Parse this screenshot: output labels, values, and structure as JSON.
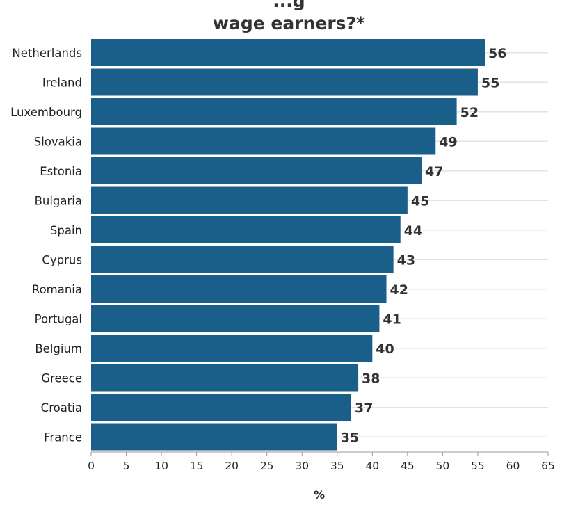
{
  "title_lines": [
    "...g",
    "wage earners?*"
  ],
  "chart_data": {
    "type": "bar",
    "orientation": "horizontal",
    "title": "...g wage earners?*",
    "xlabel": "%",
    "ylabel": "",
    "xlim": [
      0,
      65
    ],
    "xticks": [
      0,
      5,
      10,
      15,
      20,
      25,
      30,
      35,
      40,
      45,
      50,
      55,
      60,
      65
    ],
    "grid": true,
    "categories": [
      "Netherlands",
      "Ireland",
      "Luxembourg",
      "Slovakia",
      "Estonia",
      "Bulgaria",
      "Spain",
      "Cyprus",
      "Romania",
      "Portugal",
      "Belgium",
      "Greece",
      "Croatia",
      "France"
    ],
    "values": [
      56,
      55,
      52,
      49,
      47,
      45,
      44,
      43,
      42,
      41,
      40,
      38,
      37,
      35
    ],
    "data_labels": true,
    "bar_color": "#1a5f8a"
  },
  "colors": {
    "bar": "#1a5f8a",
    "text": "#333333",
    "grid": "#e3e3e3",
    "axis": "#999999"
  }
}
